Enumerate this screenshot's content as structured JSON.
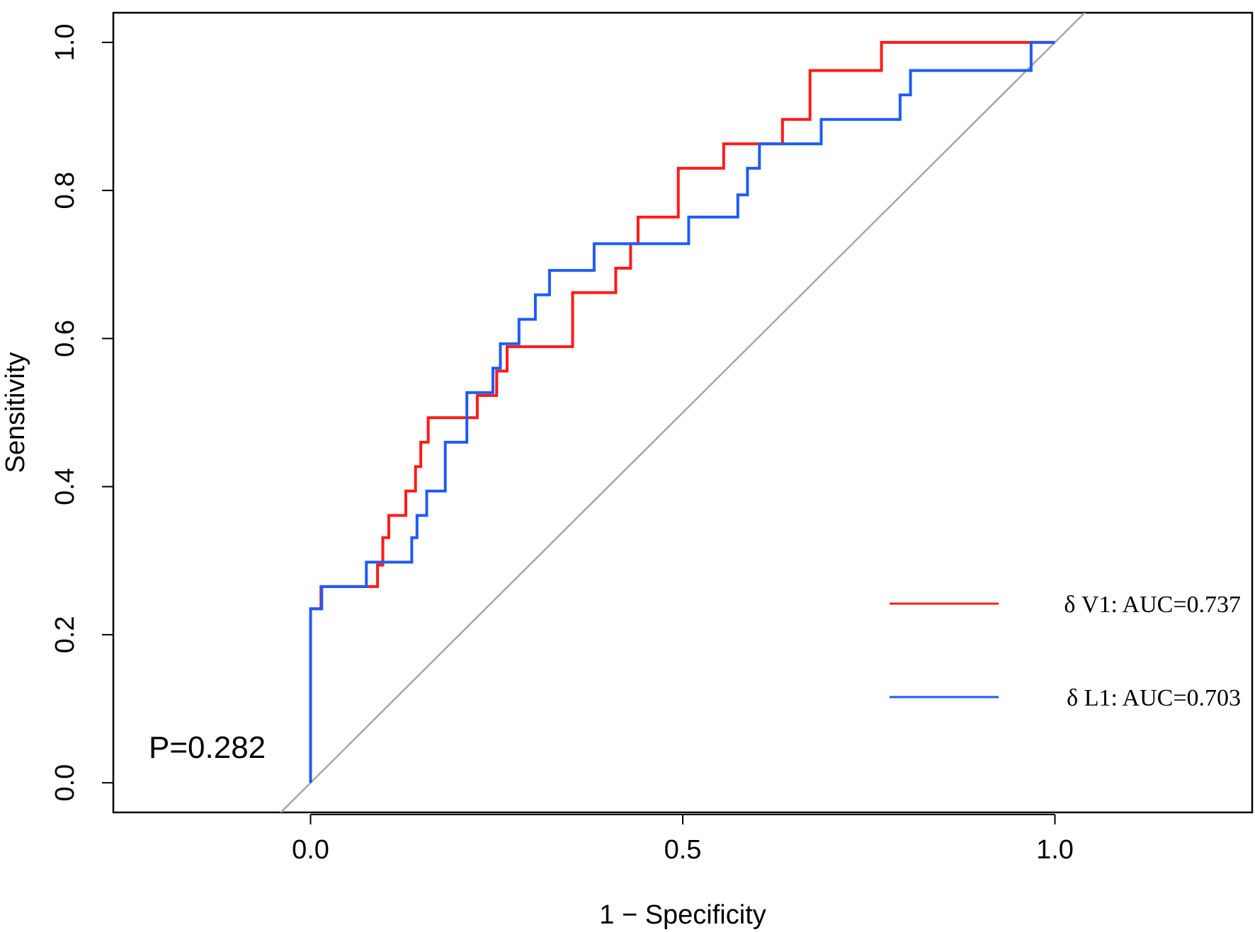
{
  "chart_data": {
    "type": "line",
    "title": "",
    "xlabel": "1 − Specificity",
    "ylabel": "Sensitivity",
    "xlim": [
      -0.265,
      1.265
    ],
    "ylim": [
      -0.04,
      1.04
    ],
    "xticks": [
      0.0,
      0.5,
      1.0
    ],
    "xtick_labels": [
      "0.0",
      "0.5",
      "1.0"
    ],
    "yticks": [
      0.0,
      0.2,
      0.4,
      0.6,
      0.8,
      1.0
    ],
    "ytick_labels": [
      "0.0",
      "0.2",
      "0.4",
      "0.6",
      "0.8",
      "1.0"
    ],
    "grid": false,
    "legend_position": "bottom-right",
    "reference_line": {
      "name": "chance",
      "color": "#a6a6a6",
      "x": [
        0,
        1
      ],
      "y": [
        0,
        1
      ]
    },
    "annotation": "P=0.282",
    "series": [
      {
        "name": "δ V1: AUC=0.737",
        "color": "#ff1a1a",
        "x": [
          0,
          0,
          0.014,
          0.014,
          0.024,
          0.024,
          0.09,
          0.09,
          0.097,
          0.097,
          0.105,
          0.105,
          0.128,
          0.128,
          0.141,
          0.141,
          0.148,
          0.148,
          0.158,
          0.158,
          0.224,
          0.224,
          0.25,
          0.25,
          0.264,
          0.264,
          0.352,
          0.352,
          0.41,
          0.41,
          0.43,
          0.43,
          0.44,
          0.44,
          0.494,
          0.494,
          0.555,
          0.555,
          0.634,
          0.634,
          0.671,
          0.671,
          0.767,
          0.767,
          1.0
        ],
        "y": [
          0,
          0.235,
          0.235,
          0.265,
          0.265,
          0.265,
          0.265,
          0.294,
          0.294,
          0.331,
          0.331,
          0.361,
          0.361,
          0.394,
          0.394,
          0.427,
          0.427,
          0.46,
          0.46,
          0.493,
          0.493,
          0.523,
          0.523,
          0.556,
          0.556,
          0.589,
          0.589,
          0.662,
          0.662,
          0.695,
          0.695,
          0.728,
          0.728,
          0.764,
          0.764,
          0.83,
          0.83,
          0.863,
          0.863,
          0.896,
          0.896,
          0.962,
          0.962,
          1.0,
          1.0
        ]
      },
      {
        "name": "δ L1: AUC=0.703",
        "color": "#1f5cf5",
        "x": [
          0,
          0,
          0.015,
          0.015,
          0.075,
          0.075,
          0.136,
          0.136,
          0.143,
          0.143,
          0.156,
          0.156,
          0.181,
          0.181,
          0.21,
          0.21,
          0.245,
          0.245,
          0.255,
          0.255,
          0.28,
          0.28,
          0.302,
          0.302,
          0.321,
          0.321,
          0.381,
          0.381,
          0.508,
          0.508,
          0.574,
          0.574,
          0.587,
          0.587,
          0.603,
          0.603,
          0.686,
          0.686,
          0.792,
          0.792,
          0.806,
          0.806,
          0.89,
          0.89,
          0.968,
          0.968,
          1.0
        ],
        "y": [
          0,
          0.235,
          0.235,
          0.265,
          0.265,
          0.298,
          0.298,
          0.331,
          0.331,
          0.361,
          0.361,
          0.394,
          0.394,
          0.46,
          0.46,
          0.527,
          0.527,
          0.56,
          0.56,
          0.593,
          0.593,
          0.626,
          0.626,
          0.659,
          0.659,
          0.692,
          0.692,
          0.728,
          0.728,
          0.764,
          0.764,
          0.794,
          0.794,
          0.83,
          0.83,
          0.863,
          0.863,
          0.896,
          0.896,
          0.929,
          0.929,
          0.962,
          0.962,
          0.962,
          0.962,
          1.0,
          1.0
        ]
      }
    ]
  }
}
